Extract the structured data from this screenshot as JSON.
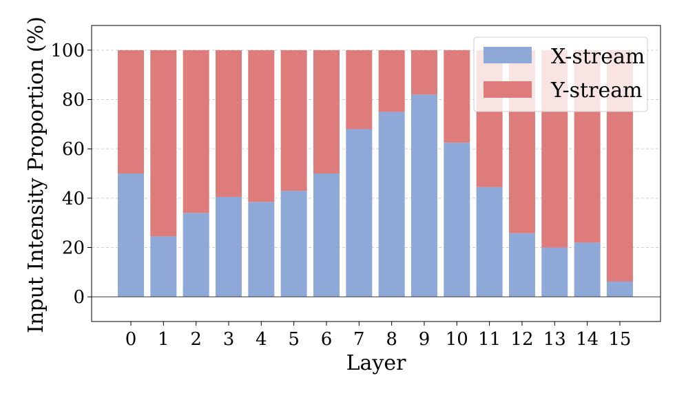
{
  "chart_data": {
    "type": "bar",
    "stacked": true,
    "xlabel": "Layer",
    "ylabel": "Input Intensity Proportion (%)",
    "ylim": [
      -10,
      110
    ],
    "yticks": [
      0,
      20,
      40,
      60,
      80,
      100
    ],
    "grid": true,
    "legend_position": "top-right",
    "categories": [
      "0",
      "1",
      "2",
      "3",
      "4",
      "5",
      "6",
      "7",
      "8",
      "9",
      "10",
      "11",
      "12",
      "13",
      "14",
      "15"
    ],
    "series": [
      {
        "name": "X-stream",
        "color": "#8ea8d8",
        "values": [
          50,
          24.5,
          34,
          40.5,
          38.5,
          43,
          50,
          68,
          75,
          82,
          62.5,
          44.5,
          25.8,
          20,
          22,
          6.2
        ]
      },
      {
        "name": "Y-stream",
        "color": "#de7b7b",
        "values": [
          50,
          75.5,
          66,
          59.5,
          61.5,
          57,
          50,
          32,
          25,
          18,
          37.5,
          55.5,
          74.2,
          80,
          78,
          93.8
        ]
      }
    ]
  }
}
